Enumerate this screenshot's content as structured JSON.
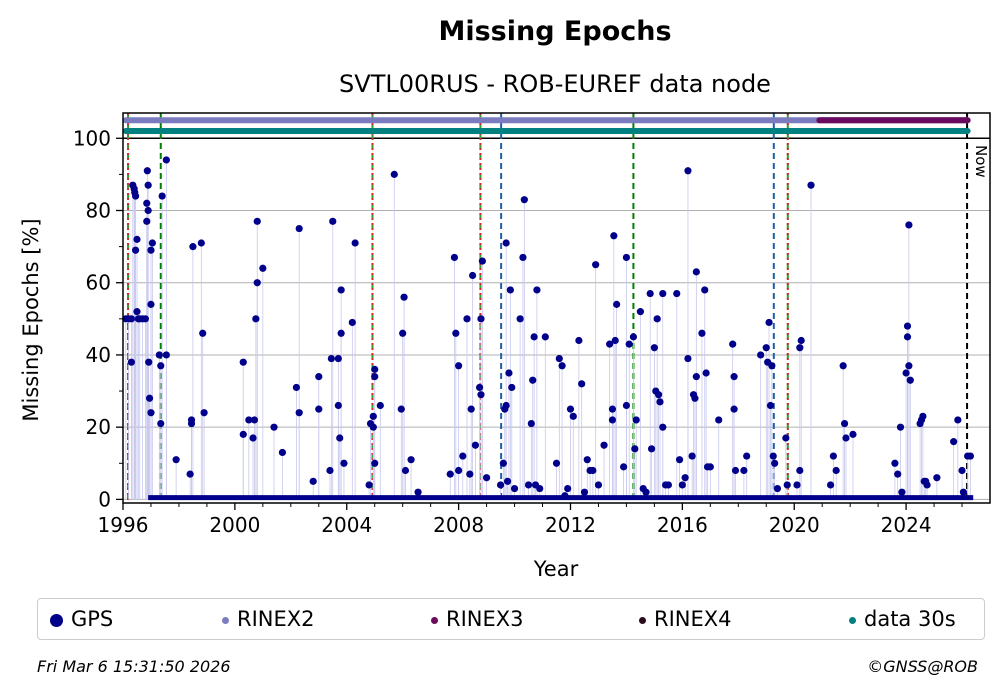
{
  "chart_data": {
    "type": "scatter",
    "title": "Missing Epochs",
    "subtitle": "SVTL00RUS - ROB-EUREF data node",
    "xlabel": "Year",
    "ylabel": "Missing Epochs [%]",
    "xlim": [
      1996,
      2027
    ],
    "ylim": [
      -1,
      107
    ],
    "x_ticks": [
      "1996",
      "2000",
      "2004",
      "2008",
      "2012",
      "2016",
      "2020",
      "2024"
    ],
    "x_tick_values": [
      1996,
      2000,
      2004,
      2008,
      2012,
      2016,
      2020,
      2024
    ],
    "y_ticks": [
      "0",
      "20",
      "40",
      "60",
      "80",
      "100"
    ],
    "y_tick_values": [
      0,
      20,
      40,
      60,
      80,
      100
    ],
    "grid": true,
    "legend_placement": "bottom",
    "now_label": "Now",
    "now_x": 2026.18,
    "vertical_lines": [
      {
        "x": 1996.18,
        "color": "#2ca02c",
        "style": "dashed"
      },
      {
        "x": 1996.18,
        "color": "#d62728",
        "style": "dotted"
      },
      {
        "x": 1997.35,
        "color": "#008000",
        "style": "dashed"
      },
      {
        "x": 2004.92,
        "color": "#2ca02c",
        "style": "dashed"
      },
      {
        "x": 2004.92,
        "color": "#d62728",
        "style": "dotted"
      },
      {
        "x": 2008.78,
        "color": "#2ca02c",
        "style": "dashed"
      },
      {
        "x": 2008.78,
        "color": "#d62728",
        "style": "dotted"
      },
      {
        "x": 2009.52,
        "color": "#1f5fa8",
        "style": "dashed"
      },
      {
        "x": 2014.25,
        "color": "#008000",
        "style": "dashed"
      },
      {
        "x": 2019.27,
        "color": "#1f5fa8",
        "style": "dashed"
      },
      {
        "x": 2019.77,
        "color": "#2ca02c",
        "style": "dashed"
      },
      {
        "x": 2019.77,
        "color": "#d62728",
        "style": "dotted"
      }
    ],
    "bands": [
      {
        "name": "RINEX2",
        "x_start": 1996.1,
        "x_end": 2026.2,
        "y": 105,
        "color": "#7b7bc0"
      },
      {
        "name": "RINEX3",
        "x_start": 2020.9,
        "x_end": 2026.2,
        "y": 105,
        "color": "#6a0a5e"
      },
      {
        "name": "data 30s",
        "x_start": 1996.1,
        "x_end": 2026.2,
        "y": 102,
        "color": "#008080"
      }
    ],
    "series": [
      {
        "name": "GPS",
        "color": "#00008b",
        "baseline_x_range": [
          1996.9,
          2026.4
        ],
        "baseline_value": 0.5,
        "points": [
          [
            1996.1,
            50
          ],
          [
            1996.2,
            50
          ],
          [
            1996.3,
            50
          ],
          [
            1996.3,
            38
          ],
          [
            1996.35,
            87
          ],
          [
            1996.4,
            86
          ],
          [
            1996.42,
            85
          ],
          [
            1996.45,
            84
          ],
          [
            1996.5,
            72
          ],
          [
            1996.45,
            69
          ],
          [
            1996.5,
            52
          ],
          [
            1996.55,
            50
          ],
          [
            1996.6,
            50
          ],
          [
            1996.7,
            50
          ],
          [
            1996.8,
            50
          ],
          [
            1996.85,
            77
          ],
          [
            1996.9,
            80
          ],
          [
            1996.85,
            82
          ],
          [
            1996.9,
            87
          ],
          [
            1996.87,
            91
          ],
          [
            1996.92,
            38
          ],
          [
            1996.95,
            28
          ],
          [
            1997.0,
            24
          ],
          [
            1997.0,
            54
          ],
          [
            1997.0,
            69
          ],
          [
            1997.05,
            71
          ],
          [
            1997.3,
            40
          ],
          [
            1997.35,
            37
          ],
          [
            1997.35,
            21
          ],
          [
            1997.4,
            84
          ],
          [
            1997.55,
            40
          ],
          [
            1997.55,
            94
          ],
          [
            1997.9,
            11
          ],
          [
            1998.4,
            7
          ],
          [
            1998.45,
            22
          ],
          [
            1998.45,
            21
          ],
          [
            1998.5,
            70
          ],
          [
            1998.8,
            71
          ],
          [
            1998.85,
            46
          ],
          [
            1998.9,
            24
          ],
          [
            2000.3,
            38
          ],
          [
            2000.3,
            18
          ],
          [
            2000.5,
            22
          ],
          [
            2000.65,
            17
          ],
          [
            2000.7,
            22
          ],
          [
            2000.75,
            50
          ],
          [
            2000.8,
            60
          ],
          [
            2000.8,
            77
          ],
          [
            2001.0,
            64
          ],
          [
            2001.4,
            20
          ],
          [
            2001.7,
            13
          ],
          [
            2002.2,
            31
          ],
          [
            2002.3,
            24
          ],
          [
            2002.3,
            75
          ],
          [
            2002.8,
            5
          ],
          [
            2003.0,
            34
          ],
          [
            2003.0,
            25
          ],
          [
            2003.4,
            8
          ],
          [
            2003.45,
            39
          ],
          [
            2003.5,
            77
          ],
          [
            2003.7,
            39
          ],
          [
            2003.7,
            26
          ],
          [
            2003.75,
            17
          ],
          [
            2003.8,
            58
          ],
          [
            2003.8,
            46
          ],
          [
            2003.9,
            10
          ],
          [
            2004.2,
            49
          ],
          [
            2004.3,
            71
          ],
          [
            2004.8,
            4
          ],
          [
            2004.85,
            21
          ],
          [
            2004.95,
            20
          ],
          [
            2004.95,
            23
          ],
          [
            2005.0,
            34
          ],
          [
            2005.0,
            36
          ],
          [
            2005.0,
            10
          ],
          [
            2005.2,
            26
          ],
          [
            2005.7,
            90
          ],
          [
            2005.95,
            25
          ],
          [
            2006.0,
            46
          ],
          [
            2006.05,
            56
          ],
          [
            2006.1,
            8
          ],
          [
            2006.3,
            11
          ],
          [
            2006.55,
            2
          ],
          [
            2007.7,
            7
          ],
          [
            2007.85,
            67
          ],
          [
            2007.9,
            46
          ],
          [
            2008.0,
            8
          ],
          [
            2008.0,
            37
          ],
          [
            2008.15,
            12
          ],
          [
            2008.3,
            50
          ],
          [
            2008.4,
            7
          ],
          [
            2008.45,
            25
          ],
          [
            2008.5,
            62
          ],
          [
            2008.6,
            15
          ],
          [
            2008.75,
            31
          ],
          [
            2008.8,
            29
          ],
          [
            2008.8,
            50
          ],
          [
            2008.85,
            66
          ],
          [
            2009.0,
            6
          ],
          [
            2009.5,
            4
          ],
          [
            2009.6,
            10
          ],
          [
            2009.65,
            25
          ],
          [
            2009.7,
            71
          ],
          [
            2009.7,
            26
          ],
          [
            2009.75,
            5
          ],
          [
            2009.8,
            35
          ],
          [
            2009.85,
            58
          ],
          [
            2009.9,
            31
          ],
          [
            2010.0,
            3
          ],
          [
            2010.2,
            50
          ],
          [
            2010.3,
            67
          ],
          [
            2010.35,
            83
          ],
          [
            2010.5,
            4
          ],
          [
            2010.6,
            21
          ],
          [
            2010.7,
            45
          ],
          [
            2010.75,
            4
          ],
          [
            2010.8,
            58
          ],
          [
            2010.65,
            33
          ],
          [
            2010.9,
            3
          ],
          [
            2011.1,
            45
          ],
          [
            2011.5,
            10
          ],
          [
            2011.6,
            39
          ],
          [
            2011.7,
            37
          ],
          [
            2011.8,
            1
          ],
          [
            2011.9,
            3
          ],
          [
            2012.0,
            25
          ],
          [
            2012.1,
            23
          ],
          [
            2012.3,
            44
          ],
          [
            2012.4,
            32
          ],
          [
            2012.5,
            2
          ],
          [
            2012.6,
            11
          ],
          [
            2012.7,
            8
          ],
          [
            2012.8,
            8
          ],
          [
            2012.9,
            65
          ],
          [
            2013.0,
            4
          ],
          [
            2013.2,
            15
          ],
          [
            2013.4,
            43
          ],
          [
            2013.5,
            25
          ],
          [
            2013.5,
            22
          ],
          [
            2013.55,
            73
          ],
          [
            2013.6,
            44
          ],
          [
            2013.65,
            54
          ],
          [
            2013.9,
            9
          ],
          [
            2014.0,
            26
          ],
          [
            2014.0,
            67
          ],
          [
            2014.1,
            43
          ],
          [
            2014.25,
            45
          ],
          [
            2014.3,
            14
          ],
          [
            2014.35,
            22
          ],
          [
            2014.5,
            52
          ],
          [
            2014.6,
            3
          ],
          [
            2014.7,
            2
          ],
          [
            2014.85,
            57
          ],
          [
            2014.9,
            14
          ],
          [
            2015.0,
            42
          ],
          [
            2015.05,
            30
          ],
          [
            2015.1,
            50
          ],
          [
            2015.15,
            29
          ],
          [
            2015.2,
            27
          ],
          [
            2015.3,
            57
          ],
          [
            2015.3,
            20
          ],
          [
            2015.4,
            4
          ],
          [
            2015.5,
            4
          ],
          [
            2015.8,
            57
          ],
          [
            2015.9,
            11
          ],
          [
            2016.0,
            4
          ],
          [
            2016.1,
            6
          ],
          [
            2016.2,
            39
          ],
          [
            2016.2,
            91
          ],
          [
            2016.35,
            12
          ],
          [
            2016.4,
            29
          ],
          [
            2016.45,
            28
          ],
          [
            2016.5,
            63
          ],
          [
            2016.5,
            34
          ],
          [
            2016.7,
            46
          ],
          [
            2016.8,
            58
          ],
          [
            2016.85,
            35
          ],
          [
            2016.9,
            9
          ],
          [
            2017.0,
            9
          ],
          [
            2017.3,
            22
          ],
          [
            2017.8,
            43
          ],
          [
            2017.85,
            34
          ],
          [
            2017.85,
            25
          ],
          [
            2017.9,
            8
          ],
          [
            2018.2,
            8
          ],
          [
            2018.3,
            12
          ],
          [
            2018.8,
            40
          ],
          [
            2019.0,
            42
          ],
          [
            2019.05,
            38
          ],
          [
            2019.1,
            49
          ],
          [
            2019.15,
            26
          ],
          [
            2019.2,
            37
          ],
          [
            2019.25,
            12
          ],
          [
            2019.3,
            10
          ],
          [
            2019.4,
            3
          ],
          [
            2019.7,
            17
          ],
          [
            2019.75,
            4
          ],
          [
            2020.1,
            4
          ],
          [
            2020.2,
            42
          ],
          [
            2020.25,
            44
          ],
          [
            2020.2,
            8
          ],
          [
            2020.6,
            87
          ],
          [
            2021.3,
            4
          ],
          [
            2021.4,
            12
          ],
          [
            2021.5,
            8
          ],
          [
            2021.75,
            37
          ],
          [
            2021.8,
            21
          ],
          [
            2021.85,
            17
          ],
          [
            2022.1,
            18
          ],
          [
            2023.6,
            10
          ],
          [
            2023.7,
            7
          ],
          [
            2023.8,
            20
          ],
          [
            2023.85,
            2
          ],
          [
            2024.0,
            35
          ],
          [
            2024.05,
            48
          ],
          [
            2024.05,
            45
          ],
          [
            2024.1,
            76
          ],
          [
            2024.1,
            37
          ],
          [
            2024.15,
            33
          ],
          [
            2024.5,
            21
          ],
          [
            2024.55,
            22
          ],
          [
            2024.6,
            23
          ],
          [
            2024.7,
            5
          ],
          [
            2024.65,
            5
          ],
          [
            2024.75,
            4
          ],
          [
            2025.1,
            6
          ],
          [
            2025.7,
            16
          ],
          [
            2025.85,
            22
          ],
          [
            2026.0,
            8
          ],
          [
            2026.05,
            2
          ],
          [
            2026.2,
            12
          ],
          [
            2026.3,
            12
          ]
        ]
      }
    ],
    "legend": [
      {
        "label": "GPS",
        "color": "#00008b"
      },
      {
        "label": "RINEX2",
        "color": "#7b7bc0"
      },
      {
        "label": "RINEX3",
        "color": "#6a0a5e"
      },
      {
        "label": "RINEX4",
        "color": "#2a0a1e"
      },
      {
        "label": "data 30s",
        "color": "#008080"
      }
    ]
  },
  "footer": {
    "timestamp": "Fri Mar  6 15:31:50 2026",
    "credit": "©GNSS@ROB"
  }
}
